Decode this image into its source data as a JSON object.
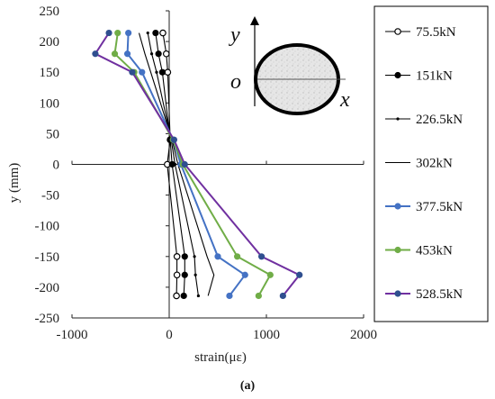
{
  "chart_data": {
    "type": "line",
    "xlabel": "strain(με)",
    "ylabel": "y (mm)",
    "xlim": [
      -1000,
      2000
    ],
    "ylim": [
      -250,
      250
    ],
    "xticks": [
      -1000,
      0,
      1000,
      2000
    ],
    "yticks": [
      -250,
      -200,
      -150,
      -100,
      -50,
      0,
      50,
      100,
      150,
      200,
      250
    ],
    "grid": false,
    "legend_position": "right",
    "y_positions": [
      214,
      180,
      150,
      40,
      0,
      -150,
      -180,
      -214
    ],
    "series": [
      {
        "name": "75.5kN",
        "color": "#000000",
        "marker": "open-circle",
        "x": [
          -65,
          -30,
          -15,
          10,
          -20,
          80,
          80,
          75
        ]
      },
      {
        "name": "151kN",
        "color": "#000000",
        "marker": "dot",
        "x": [
          -140,
          -110,
          -70,
          10,
          30,
          160,
          160,
          150
        ]
      },
      {
        "name": "226.5kN",
        "color": "#000000",
        "marker": "small-dot",
        "x": [
          -220,
          -180,
          -130,
          20,
          60,
          260,
          270,
          300
        ]
      },
      {
        "name": "302kN",
        "color": "#000000",
        "marker": "none",
        "x": [
          -310,
          -250,
          -190,
          30,
          90,
          390,
          460,
          400
        ]
      },
      {
        "name": "377.5kN",
        "color": "#4472c4",
        "marker": "dot",
        "x": [
          -420,
          -430,
          -280,
          40,
          120,
          500,
          780,
          620
        ]
      },
      {
        "name": "453kN",
        "color": "#70ad47",
        "marker": "dot",
        "x": [
          -530,
          -560,
          -360,
          40,
          140,
          700,
          1040,
          920
        ]
      },
      {
        "name": "528.5kN",
        "color": "#7030a0",
        "marker": "dot",
        "marker_color": "#2f4f8f",
        "x": [
          -620,
          -760,
          -380,
          50,
          160,
          950,
          1340,
          1170
        ]
      }
    ],
    "inset": {
      "y_label": "y",
      "x_label": "x",
      "origin_label": "o"
    },
    "caption": "(a)"
  }
}
